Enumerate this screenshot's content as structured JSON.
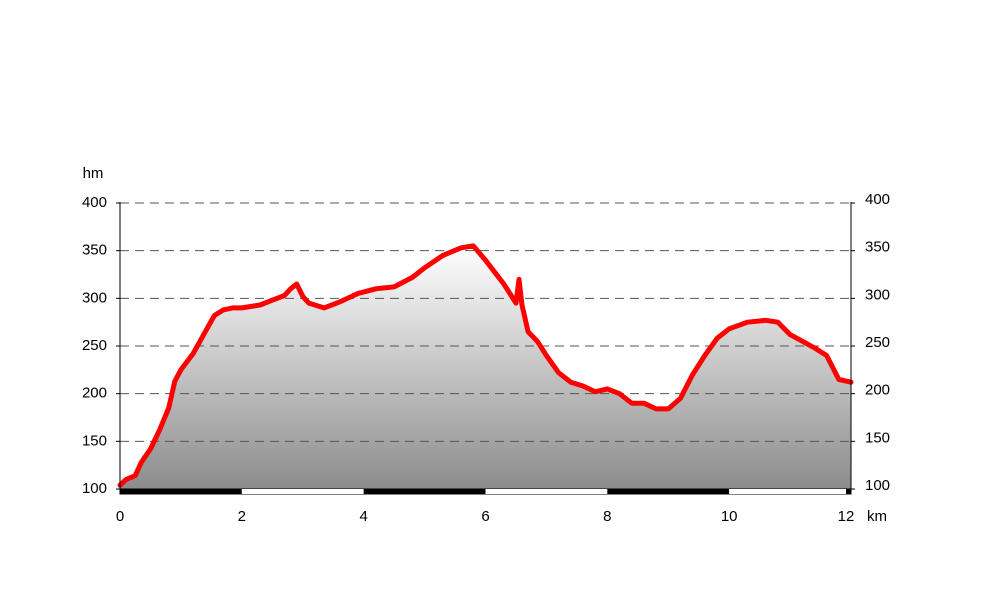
{
  "chart_data": {
    "type": "area",
    "x_unit": "km",
    "y_unit": "hm",
    "xlim": [
      0,
      12
    ],
    "ylim": [
      100,
      400
    ],
    "x_ticks": [
      0,
      2,
      4,
      6,
      8,
      10,
      12
    ],
    "y_ticks": [
      100,
      150,
      200,
      250,
      300,
      350,
      400
    ],
    "grid": true,
    "legend": "none",
    "colors": {
      "line": "#ff0000",
      "fill_top": "#ffffff",
      "fill_bottom": "#8c8c8c",
      "grid": "#555555",
      "axis": "#000000"
    },
    "series": [
      {
        "x": [
          0,
          0.1,
          0.25,
          0.35,
          0.5,
          0.65,
          0.8,
          0.9,
          1.0,
          1.2,
          1.4,
          1.55,
          1.7,
          1.85,
          2.0,
          2.3,
          2.5,
          2.7,
          2.8,
          2.9,
          3.0,
          3.1,
          3.35,
          3.6,
          3.9,
          4.2,
          4.5,
          4.8,
          5.0,
          5.3,
          5.6,
          5.8,
          6.0,
          6.3,
          6.5,
          6.55,
          6.6,
          6.7,
          6.85,
          7.0,
          7.2,
          7.4,
          7.6,
          7.8,
          8.0,
          8.2,
          8.4,
          8.6,
          8.8,
          9.0,
          9.2,
          9.4,
          9.6,
          9.8,
          10.0,
          10.3,
          10.6,
          10.8,
          11.0,
          11.2,
          11.4,
          11.6,
          11.8,
          12.0
        ],
        "y": [
          104,
          110,
          114,
          128,
          142,
          162,
          185,
          213,
          225,
          242,
          265,
          282,
          288,
          290,
          290,
          293,
          298,
          303,
          310,
          315,
          302,
          295,
          290,
          296,
          305,
          310,
          312,
          322,
          332,
          345,
          353,
          355,
          340,
          315,
          295,
          320,
          293,
          265,
          255,
          240,
          222,
          212,
          208,
          202,
          205,
          200,
          190,
          190,
          184,
          184,
          195,
          220,
          240,
          258,
          268,
          275,
          277,
          275,
          262,
          255,
          248,
          240,
          215,
          212
        ]
      }
    ],
    "segments": [
      {
        "from": 0,
        "to": 2,
        "color": "#000000"
      },
      {
        "from": 2,
        "to": 4,
        "color": "#ffffff"
      },
      {
        "from": 4,
        "to": 6,
        "color": "#000000"
      },
      {
        "from": 6,
        "to": 8,
        "color": "#ffffff"
      },
      {
        "from": 8,
        "to": 10,
        "color": "#000000"
      },
      {
        "from": 10,
        "to": 12,
        "color": "#ffffff"
      }
    ]
  }
}
